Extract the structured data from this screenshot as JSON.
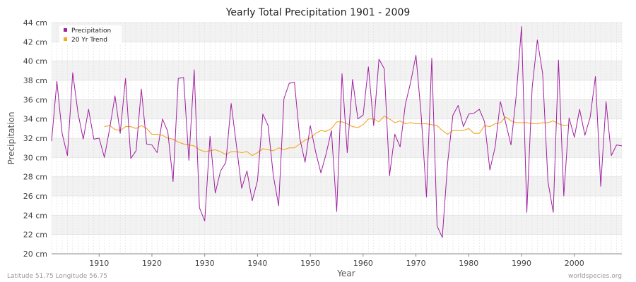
{
  "chart_data": {
    "type": "line",
    "title": "Yearly Total Precipitation 1901 - 2009",
    "xlabel": "Year",
    "ylabel": "Precipitation",
    "xlim": [
      1901,
      2009
    ],
    "ylim": [
      20,
      44
    ],
    "y_unit": "cm",
    "x_ticks": [
      1910,
      1920,
      1930,
      1940,
      1950,
      1960,
      1970,
      1980,
      1990,
      2000
    ],
    "y_ticks": [
      20,
      22,
      24,
      26,
      28,
      30,
      32,
      34,
      36,
      38,
      40,
      42,
      44
    ],
    "y_tick_labels": [
      "20 cm",
      "22 cm",
      "24 cm",
      "26 cm",
      "28 cm",
      "30 cm",
      "32 cm",
      "34 cm",
      "36 cm",
      "38 cm",
      "40 cm",
      "42 cm",
      "44 cm"
    ],
    "legend_position": "top-left",
    "series": [
      {
        "name": "Precipitation",
        "color": "#a020a0",
        "x": [
          1901,
          1902,
          1903,
          1904,
          1905,
          1906,
          1907,
          1908,
          1909,
          1910,
          1911,
          1912,
          1913,
          1914,
          1915,
          1916,
          1917,
          1918,
          1919,
          1920,
          1921,
          1922,
          1923,
          1924,
          1925,
          1926,
          1927,
          1928,
          1929,
          1930,
          1931,
          1932,
          1933,
          1934,
          1935,
          1936,
          1937,
          1938,
          1939,
          1940,
          1941,
          1942,
          1943,
          1944,
          1945,
          1946,
          1947,
          1948,
          1949,
          1950,
          1951,
          1952,
          1953,
          1954,
          1955,
          1956,
          1957,
          1958,
          1959,
          1960,
          1961,
          1962,
          1963,
          1964,
          1965,
          1966,
          1967,
          1968,
          1969,
          1970,
          1971,
          1972,
          1973,
          1974,
          1975,
          1976,
          1977,
          1978,
          1979,
          1980,
          1981,
          1982,
          1983,
          1984,
          1985,
          1986,
          1987,
          1988,
          1989,
          1990,
          1991,
          1992,
          1993,
          1994,
          1995,
          1996,
          1997,
          1998,
          1999,
          2000,
          2001,
          2002,
          2003,
          2004,
          2005,
          2006,
          2007,
          2008,
          2009
        ],
        "values": [
          31.7,
          37.9,
          32.5,
          30.2,
          38.8,
          34.6,
          31.9,
          35.0,
          31.9,
          32.0,
          30.0,
          33.0,
          36.4,
          32.5,
          38.2,
          29.9,
          30.7,
          37.1,
          31.4,
          31.3,
          30.5,
          34.0,
          32.7,
          27.5,
          38.2,
          38.3,
          29.7,
          39.1,
          24.8,
          23.4,
          32.2,
          26.3,
          28.6,
          29.5,
          35.6,
          31.3,
          26.8,
          28.6,
          25.5,
          27.6,
          34.5,
          33.3,
          28.1,
          25.0,
          36.1,
          37.7,
          37.8,
          32.0,
          29.5,
          33.3,
          30.6,
          28.4,
          30.4,
          32.8,
          24.4,
          38.7,
          30.5,
          38.1,
          34.0,
          34.4,
          39.4,
          33.3,
          40.2,
          39.2,
          28.1,
          32.4,
          31.1,
          35.5,
          37.8,
          40.6,
          34.3,
          25.9,
          40.3,
          22.9,
          21.7,
          29.4,
          34.4,
          35.4,
          33.2,
          34.5,
          34.6,
          35.0,
          33.7,
          28.7,
          31.1,
          35.8,
          33.6,
          31.3,
          36.5,
          43.6,
          24.3,
          37.2,
          42.2,
          38.7,
          27.5,
          24.3,
          40.1,
          26.0,
          34.1,
          32.1,
          35.0,
          32.3,
          34.2,
          38.4,
          27.0,
          35.8,
          30.2,
          31.3,
          31.2
        ]
      },
      {
        "name": "20 Yr Trend",
        "color": "#f5a623",
        "x": [
          1911,
          1912,
          1913,
          1914,
          1915,
          1916,
          1917,
          1918,
          1919,
          1920,
          1921,
          1922,
          1923,
          1924,
          1925,
          1926,
          1927,
          1928,
          1929,
          1930,
          1931,
          1932,
          1933,
          1934,
          1935,
          1936,
          1937,
          1938,
          1939,
          1940,
          1941,
          1942,
          1943,
          1944,
          1945,
          1946,
          1947,
          1948,
          1949,
          1950,
          1951,
          1952,
          1953,
          1954,
          1955,
          1956,
          1957,
          1958,
          1959,
          1960,
          1961,
          1962,
          1963,
          1964,
          1965,
          1966,
          1967,
          1968,
          1969,
          1970,
          1971,
          1972,
          1973,
          1974,
          1975,
          1976,
          1977,
          1978,
          1979,
          1980,
          1981,
          1982,
          1983,
          1984,
          1985,
          1986,
          1987,
          1988,
          1989,
          1990,
          1991,
          1992,
          1993,
          1994,
          1995,
          1996,
          1997,
          1998,
          1999
        ],
        "values": [
          33.2,
          33.3,
          32.9,
          32.8,
          33.2,
          33.2,
          33.0,
          33.3,
          33.0,
          32.4,
          32.4,
          32.3,
          32.0,
          31.9,
          31.6,
          31.4,
          31.3,
          31.2,
          30.8,
          30.6,
          30.7,
          30.8,
          30.6,
          30.3,
          30.6,
          30.6,
          30.5,
          30.6,
          30.2,
          30.5,
          30.9,
          30.8,
          30.7,
          31.0,
          30.8,
          31.0,
          31.0,
          31.4,
          31.8,
          32.0,
          32.5,
          32.8,
          32.7,
          33.0,
          33.7,
          33.7,
          33.5,
          33.2,
          33.1,
          33.4,
          34.0,
          34.0,
          33.7,
          34.3,
          34.0,
          33.6,
          33.8,
          33.5,
          33.6,
          33.5,
          33.5,
          33.5,
          33.4,
          33.3,
          32.8,
          32.4,
          32.8,
          32.8,
          32.8,
          33.0,
          32.5,
          32.5,
          33.3,
          33.2,
          33.5,
          33.6,
          34.2,
          33.8,
          33.6,
          33.6,
          33.6,
          33.5,
          33.5,
          33.6,
          33.6,
          33.8,
          33.5,
          33.3,
          33.4
        ]
      }
    ]
  },
  "footer": {
    "location": "Latitude 51.75 Longitude 56.75",
    "source": "worldspecies.org"
  }
}
